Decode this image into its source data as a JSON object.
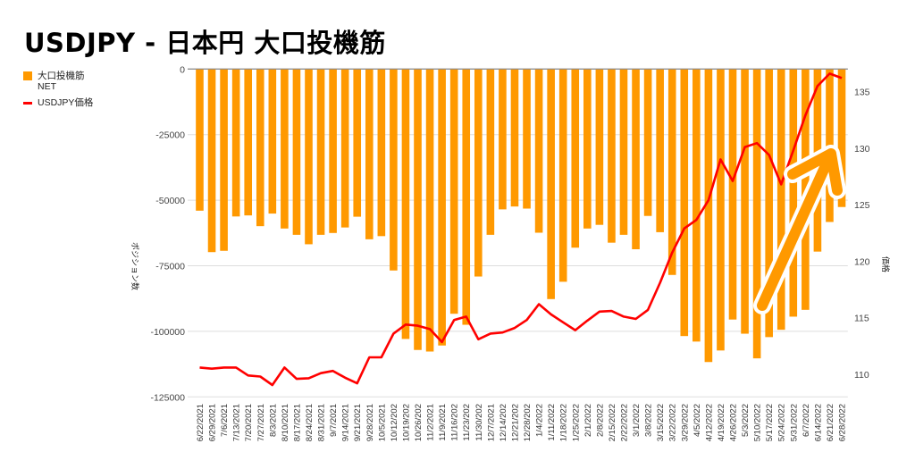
{
  "chart_data": {
    "type": "bar+line",
    "title": "USDJPY - 日本円 大口投機筋",
    "ylabel": "ポジション数",
    "y2label": "価格",
    "xlabel": "",
    "ylim": [
      -125000,
      0
    ],
    "yticks": [
      0,
      -25000,
      -50000,
      -75000,
      -100000,
      -125000
    ],
    "y2lim": [
      108,
      137
    ],
    "y2ticks": [
      110,
      115,
      120,
      125,
      130,
      135
    ],
    "grid": true,
    "legend_position": "left",
    "categories": [
      "6/22/2021",
      "6/29/2021",
      "7/6/2021",
      "7/13/2021",
      "7/20/2021",
      "7/27/2021",
      "8/3/2021",
      "8/10/2021",
      "8/17/2021",
      "8/24/2021",
      "8/31/2021",
      "9/7/2021",
      "9/14/2021",
      "9/21/2021",
      "9/28/2021",
      "10/5/2021",
      "10/12/202",
      "10/19/202",
      "10/26/202",
      "11/2/2021",
      "11/9/2021",
      "11/16/202",
      "11/23/202",
      "11/30/202",
      "12/7/2021",
      "12/14/202",
      "12/21/202",
      "12/28/202",
      "1/4/2022",
      "1/11/2022",
      "1/18/2022",
      "1/25/2022",
      "2/1/2022",
      "2/8/2022",
      "2/15/2022",
      "2/22/2022",
      "3/1/2022",
      "3/8/2022",
      "3/15/2022",
      "3/22/2022",
      "3/29/2022",
      "4/5/2022",
      "4/12/2022",
      "4/19/2022",
      "4/26/2022",
      "5/3/2022",
      "5/10/2022",
      "5/17/2022",
      "5/24/2022",
      "5/31/2022",
      "6/7/2022",
      "6/14/2022",
      "6/21/2022",
      "6/28/2022"
    ],
    "series": [
      {
        "name": "大口投機筋 NET",
        "name_lines": [
          "大口投機筋",
          "NET"
        ],
        "type": "bar",
        "axis": "left",
        "color": "#ff9900",
        "values": [
          -54000,
          -69800,
          -69300,
          -56200,
          -55800,
          -59900,
          -55100,
          -60800,
          -63200,
          -66800,
          -63200,
          -62500,
          -60400,
          -56300,
          -64900,
          -63700,
          -76800,
          -102900,
          -107100,
          -107700,
          -105400,
          -93300,
          -97500,
          -79100,
          -63200,
          -53500,
          -52400,
          -53200,
          -62400,
          -87700,
          -81100,
          -68100,
          -60800,
          -59400,
          -66200,
          -63200,
          -68700,
          -56000,
          -62200,
          -78500,
          -101800,
          -103900,
          -111700,
          -107300,
          -95500,
          -100900,
          -110300,
          -102200,
          -99400,
          -94400,
          -91800,
          -69600,
          -58300,
          -52600
        ]
      },
      {
        "name": "USDJPY価格",
        "type": "line",
        "axis": "right",
        "color": "#ff0000",
        "values": [
          110.6,
          110.5,
          110.6,
          110.6,
          109.9,
          109.8,
          109.05,
          110.6,
          109.6,
          109.65,
          110.1,
          110.3,
          109.7,
          109.2,
          111.5,
          111.5,
          113.6,
          114.4,
          114.3,
          114.0,
          112.85,
          114.8,
          115.1,
          113.1,
          113.6,
          113.7,
          114.1,
          114.8,
          116.2,
          115.3,
          114.6,
          113.9,
          114.75,
          115.55,
          115.6,
          115.1,
          114.9,
          115.7,
          118.1,
          120.75,
          122.9,
          123.65,
          125.4,
          129.0,
          127.1,
          130.1,
          130.45,
          129.4,
          126.8,
          129.8,
          132.9,
          135.5,
          136.6,
          136.2
        ]
      }
    ],
    "annotation": {
      "type": "arrow",
      "direction": "up-right",
      "color": "#ff9900",
      "outline": "#ffffff"
    }
  }
}
